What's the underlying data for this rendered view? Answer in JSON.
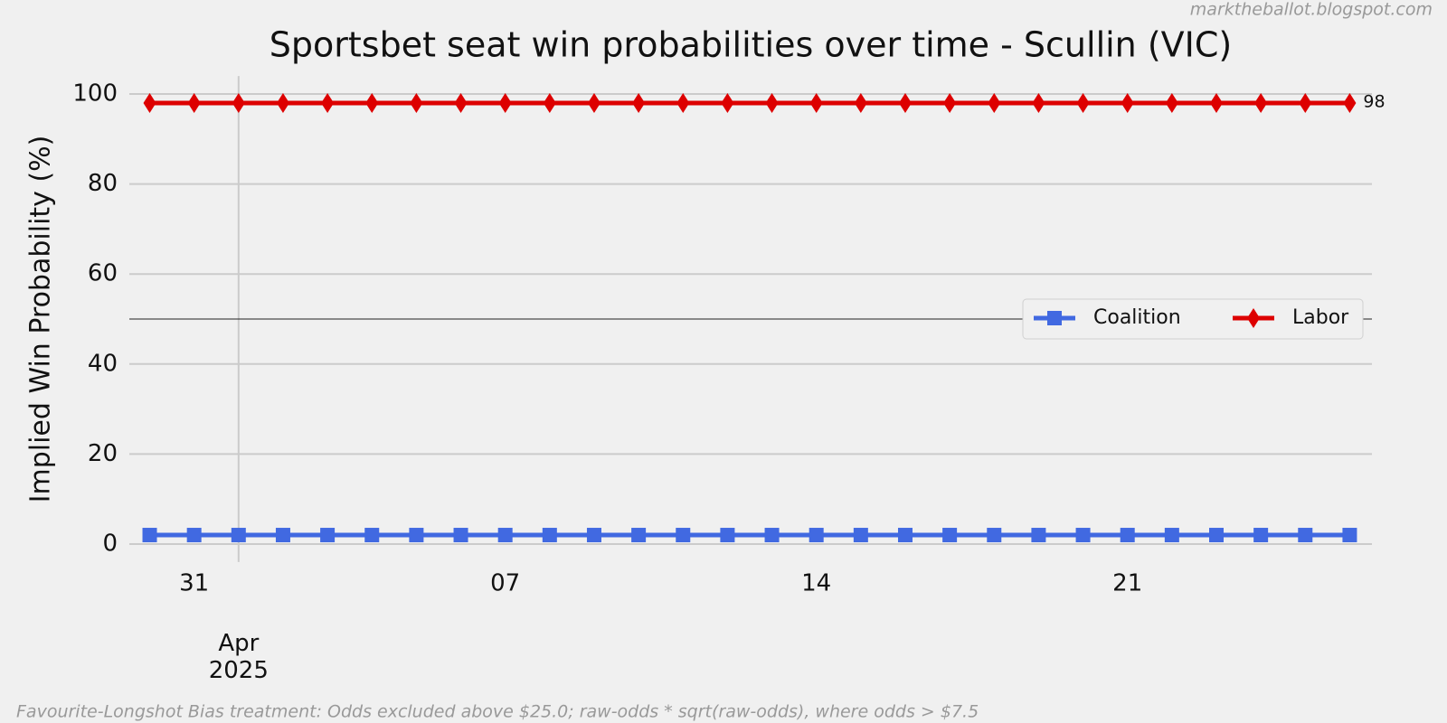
{
  "chart_data": {
    "type": "line",
    "title": "Sportsbet seat win probabilities over time - Scullin (VIC)",
    "ylabel": "Implied Win Probability (%)",
    "watermark": "marktheballot.blogspot.com",
    "footnote": "Favourite-Longshot Bias treatment: Odds excluded above $25.0; raw-odds * sqrt(raw-odds), where odds > $7.5",
    "x": [
      "2025-03-30",
      "2025-03-31",
      "2025-04-01",
      "2025-04-02",
      "2025-04-03",
      "2025-04-04",
      "2025-04-05",
      "2025-04-06",
      "2025-04-07",
      "2025-04-08",
      "2025-04-09",
      "2025-04-10",
      "2025-04-11",
      "2025-04-12",
      "2025-04-13",
      "2025-04-14",
      "2025-04-15",
      "2025-04-16",
      "2025-04-17",
      "2025-04-18",
      "2025-04-19",
      "2025-04-20",
      "2025-04-21",
      "2025-04-22",
      "2025-04-23",
      "2025-04-24",
      "2025-04-25",
      "2025-04-26"
    ],
    "series": [
      {
        "name": "Coalition",
        "color": "#4169e1",
        "marker": "square",
        "values": [
          2,
          2,
          2,
          2,
          2,
          2,
          2,
          2,
          2,
          2,
          2,
          2,
          2,
          2,
          2,
          2,
          2,
          2,
          2,
          2,
          2,
          2,
          2,
          2,
          2,
          2,
          2,
          2
        ]
      },
      {
        "name": "Labor",
        "color": "#dd0000",
        "marker": "diamond",
        "values": [
          98,
          98,
          98,
          98,
          98,
          98,
          98,
          98,
          98,
          98,
          98,
          98,
          98,
          98,
          98,
          98,
          98,
          98,
          98,
          98,
          98,
          98,
          98,
          98,
          98,
          98,
          98,
          98
        ]
      }
    ],
    "xlim": [
      "2025-03-29T13:00",
      "2025-04-26T12:00"
    ],
    "xticks": [
      {
        "value": "2025-03-31",
        "label": "31"
      },
      {
        "value": "2025-04-01",
        "label": "Apr\n2025"
      },
      {
        "value": "2025-04-07",
        "label": "07"
      },
      {
        "value": "2025-04-14",
        "label": "14"
      },
      {
        "value": "2025-04-21",
        "label": "21"
      }
    ],
    "ylim": [
      -4,
      104
    ],
    "yticks": [
      0,
      20,
      40,
      60,
      80,
      100
    ],
    "hline": 50,
    "grid": true,
    "legend": "center right"
  }
}
